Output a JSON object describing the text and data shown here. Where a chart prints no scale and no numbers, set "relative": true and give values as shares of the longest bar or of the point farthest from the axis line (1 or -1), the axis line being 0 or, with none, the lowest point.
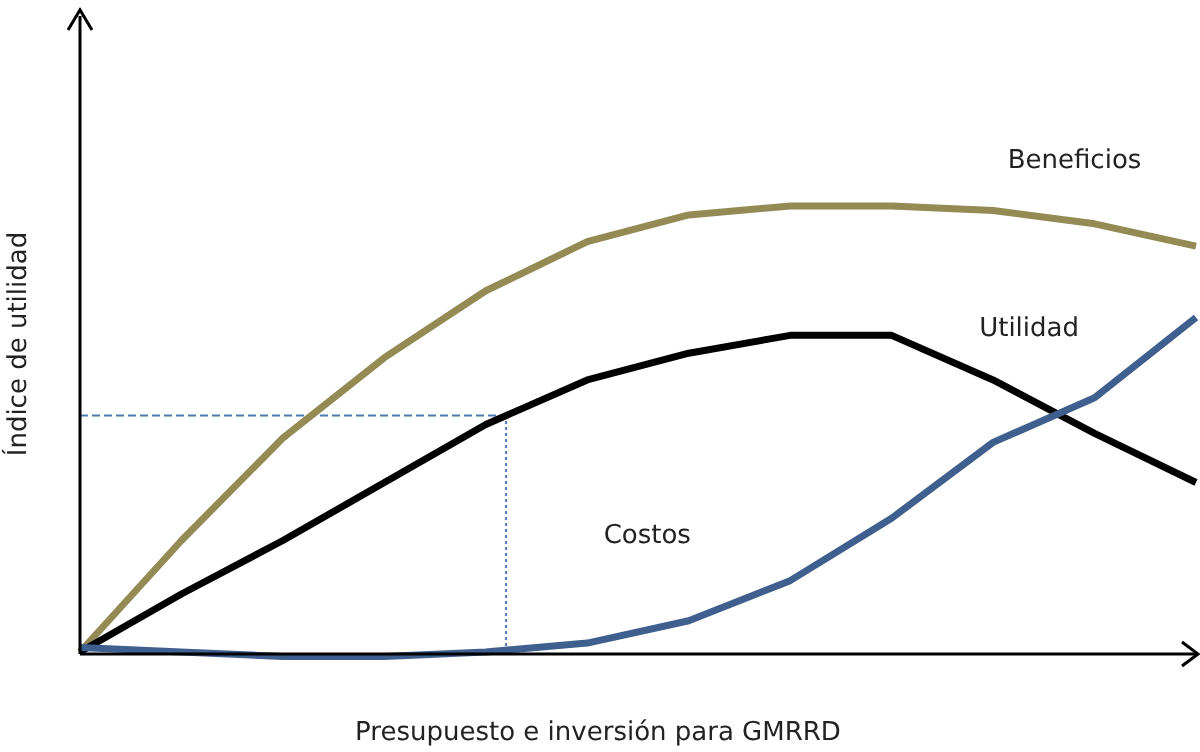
{
  "chart_data": {
    "type": "line",
    "relative": true,
    "xlabel": "Presupuesto e inversión para GMRRD",
    "ylabel": "Índice de utilidad",
    "categories": [
      null,
      null,
      null,
      null,
      null,
      null,
      null,
      null,
      null,
      null,
      null,
      null
    ],
    "line_style": "solid",
    "series": [
      {
        "name": "Beneficios",
        "color": "#948a54",
        "values": [
          0,
          0.25,
          0.48,
          0.66,
          0.81,
          0.92,
          0.98,
          1,
          1,
          0.99,
          0.96,
          0.91
        ]
      },
      {
        "name": "Utilidad",
        "color": "#000000",
        "values": [
          0,
          0.13,
          0.25,
          0.38,
          0.51,
          0.61,
          0.67,
          0.71,
          0.71,
          0.61,
          0.49,
          0.38
        ]
      },
      {
        "name": "Costos",
        "color": "#3f5f8f",
        "values": [
          0.01,
          0,
          -0.01,
          -0.01,
          0,
          0.02,
          0.07,
          0.16,
          0.3,
          0.47,
          0.57,
          0.75
        ]
      }
    ],
    "ref_lines": [
      {
        "axis": "y",
        "value": 0.53,
        "color": "#4f7bb5",
        "line_style": "dashed"
      }
    ]
  }
}
